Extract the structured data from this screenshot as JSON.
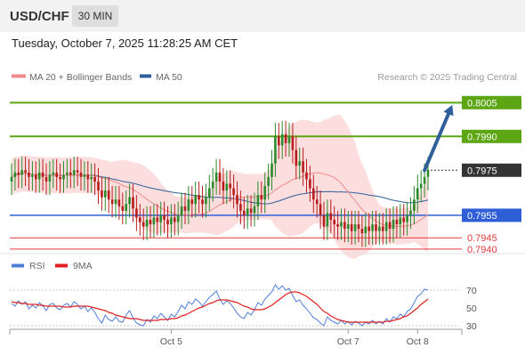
{
  "header": {
    "symbol": "USD/CHF",
    "timeframe": "30 MIN",
    "datetime": "Tuesday, October 7, 2025 11:28:25 AM CET"
  },
  "colors": {
    "ma20": "#f08a8a",
    "ma50": "#2f5f9a",
    "band_fill": "#fbd3d3",
    "resistance": "#5ca614",
    "support": "#2f5fd6",
    "support_red": "#e23b3b",
    "arrow": "#2f5f9a",
    "price_badge": "#333333",
    "rsi": "#4f7ed9",
    "rsi_ma": "#e02020",
    "candle_up": "#2b8a2b",
    "candle_down": "#b81d1d"
  },
  "chart_data": [
    {
      "type": "candlestick",
      "title": "",
      "legend": {
        "position": "top-left",
        "items": [
          {
            "name": "MA 20 + Bollinger Bands",
            "color": "#f08a8a"
          },
          {
            "name": "MA 50",
            "color": "#2f5f9a"
          }
        ]
      },
      "watermark": "Research © 2025 Trading Central",
      "ylim": [
        0.7936,
        0.8015
      ],
      "x_ticks": [
        {
          "label": "Oct 5",
          "index": 46
        },
        {
          "label": "Oct 7",
          "index": 97
        },
        {
          "label": "Oct 8",
          "index": 117
        }
      ],
      "current_price": {
        "label": "0.7975",
        "value": 0.7975
      },
      "levels": [
        {
          "label": "0.8005",
          "value": 0.8005,
          "kind": "resistance",
          "style": "badge",
          "color": "#5ca614"
        },
        {
          "label": "0.7990",
          "value": 0.799,
          "kind": "resistance",
          "style": "badge",
          "color": "#5ca614"
        },
        {
          "label": "0.7955",
          "value": 0.7955,
          "kind": "support",
          "style": "badge",
          "color": "#2f5fd6"
        },
        {
          "label": "0.7945",
          "value": 0.7945,
          "kind": "support",
          "style": "text",
          "color": "#e23b3b"
        },
        {
          "label": "0.7940",
          "value": 0.794,
          "kind": "support",
          "style": "text",
          "color": "#e23b3b"
        }
      ],
      "forecast_arrow": {
        "from": {
          "index": 119,
          "value": 0.7975
        },
        "to": {
          "index": 127,
          "value": 0.8004
        }
      },
      "candles_close": [
        0.7972,
        0.7974,
        0.7973,
        0.7975,
        0.7974,
        0.7972,
        0.7973,
        0.7971,
        0.7974,
        0.7972,
        0.797,
        0.7973,
        0.7974,
        0.7972,
        0.7971,
        0.7973,
        0.7974,
        0.7973,
        0.7975,
        0.7974,
        0.7972,
        0.7973,
        0.7971,
        0.7972,
        0.797,
        0.7966,
        0.7963,
        0.7966,
        0.7962,
        0.796,
        0.7962,
        0.7959,
        0.7957,
        0.796,
        0.7963,
        0.7958,
        0.7954,
        0.7952,
        0.795,
        0.7953,
        0.7951,
        0.7954,
        0.7952,
        0.7955,
        0.7953,
        0.7951,
        0.7954,
        0.7952,
        0.7955,
        0.7959,
        0.7957,
        0.7962,
        0.796,
        0.7964,
        0.7962,
        0.796,
        0.7963,
        0.7967,
        0.797,
        0.7974,
        0.797,
        0.7966,
        0.7969,
        0.7967,
        0.7964,
        0.796,
        0.7957,
        0.7955,
        0.7958,
        0.7956,
        0.7959,
        0.7964,
        0.7962,
        0.7968,
        0.7972,
        0.7978,
        0.799,
        0.7986,
        0.7991,
        0.7987,
        0.799,
        0.7984,
        0.7977,
        0.7979,
        0.7974,
        0.7971,
        0.7967,
        0.7962,
        0.796,
        0.7955,
        0.795,
        0.7956,
        0.7953,
        0.7951,
        0.795,
        0.7952,
        0.7949,
        0.7951,
        0.7948,
        0.7951,
        0.7949,
        0.7947,
        0.795,
        0.7948,
        0.7951,
        0.7948,
        0.795,
        0.7948,
        0.7952,
        0.7949,
        0.7953,
        0.7951,
        0.7954,
        0.7952,
        0.7955,
        0.7957,
        0.7962,
        0.7967,
        0.7969,
        0.7972,
        0.7975
      ]
    },
    {
      "type": "line",
      "title": "",
      "legend": {
        "position": "top-left",
        "items": [
          {
            "name": "RSI",
            "color": "#4f7ed9"
          },
          {
            "name": "9MA",
            "color": "#e02020"
          }
        ]
      },
      "y_ticks": [
        70,
        50,
        30
      ],
      "ylim": [
        20,
        78
      ],
      "x_ticks": [
        {
          "label": "Oct 5",
          "index": 46
        },
        {
          "label": "Oct 7",
          "index": 97
        },
        {
          "label": "Oct 8",
          "index": 117
        }
      ],
      "series": [
        {
          "name": "RSI",
          "values": [
            55,
            52,
            58,
            54,
            57,
            49,
            53,
            50,
            56,
            52,
            47,
            54,
            55,
            50,
            48,
            53,
            55,
            51,
            57,
            54,
            49,
            52,
            46,
            50,
            45,
            38,
            33,
            42,
            37,
            35,
            40,
            35,
            34,
            42,
            47,
            39,
            33,
            31,
            30,
            37,
            34,
            41,
            38,
            44,
            40,
            36,
            43,
            40,
            46,
            53,
            49,
            57,
            54,
            60,
            57,
            52,
            57,
            62,
            65,
            69,
            60,
            54,
            58,
            55,
            50,
            44,
            40,
            38,
            45,
            42,
            48,
            56,
            53,
            60,
            64,
            68,
            76,
            71,
            75,
            70,
            72,
            64,
            57,
            59,
            53,
            49,
            44,
            39,
            37,
            33,
            30,
            40,
            36,
            34,
            32,
            36,
            32,
            35,
            31,
            35,
            33,
            30,
            34,
            32,
            36,
            32,
            35,
            32,
            38,
            34,
            40,
            38,
            43,
            40,
            46,
            49,
            56,
            63,
            66,
            71,
            70
          ]
        },
        {
          "name": "9MA",
          "values": [
            57,
            56,
            56,
            55,
            55,
            54,
            54,
            54,
            53,
            53,
            52,
            52,
            52,
            52,
            52,
            51,
            51,
            51,
            52,
            52,
            52,
            52,
            52,
            51,
            50,
            49,
            48,
            47,
            45,
            44,
            42,
            41,
            40,
            39,
            38,
            38,
            38,
            37,
            36,
            36,
            36,
            36,
            36,
            37,
            37,
            37,
            38,
            38,
            39,
            41,
            42,
            44,
            46,
            48,
            50,
            51,
            53,
            55,
            56,
            58,
            59,
            59,
            59,
            58,
            57,
            56,
            54,
            52,
            51,
            49,
            48,
            48,
            48,
            49,
            51,
            53,
            56,
            59,
            62,
            65,
            67,
            68,
            68,
            67,
            65,
            63,
            60,
            57,
            54,
            50,
            46,
            44,
            41,
            39,
            37,
            36,
            35,
            34,
            34,
            34,
            34,
            34,
            34,
            34,
            34,
            34,
            34,
            34,
            35,
            35,
            36,
            37,
            38,
            40,
            41,
            44,
            47,
            50,
            54,
            57,
            60
          ]
        }
      ]
    }
  ]
}
